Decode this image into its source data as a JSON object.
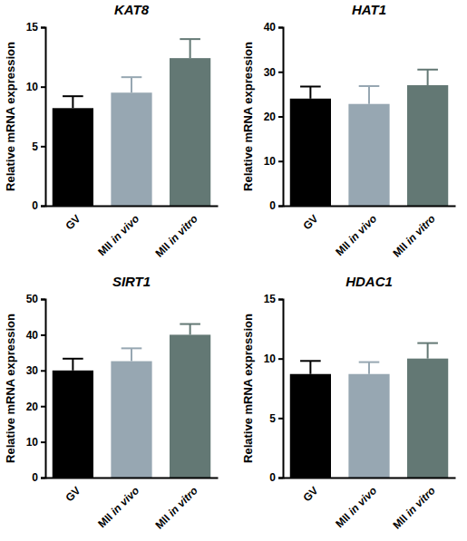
{
  "chart_data": [
    {
      "type": "bar",
      "title": "KAT8",
      "y_label": "Relative mRNA expression",
      "categories": [
        "GV",
        "MII in vivo",
        "MII in vitro"
      ],
      "values": [
        8.2,
        9.5,
        12.4
      ],
      "errors": [
        1.0,
        1.3,
        1.6
      ],
      "colors": [
        "#000000",
        "#97a7b2",
        "#637874"
      ],
      "ylim": [
        0,
        15
      ],
      "yticks": [
        0,
        5,
        10,
        15
      ]
    },
    {
      "type": "bar",
      "title": "HAT1",
      "y_label": "Relative mRNA expression",
      "categories": [
        "GV",
        "MII in vivo",
        "MII in vitro"
      ],
      "values": [
        24,
        22.8,
        27
      ],
      "errors": [
        2.7,
        4.0,
        3.5
      ],
      "colors": [
        "#000000",
        "#97a7b2",
        "#637874"
      ],
      "ylim": [
        0,
        40
      ],
      "yticks": [
        0,
        10,
        20,
        30,
        40
      ]
    },
    {
      "type": "bar",
      "title": "SIRT1",
      "y_label": "Relative mRNA expression",
      "categories": [
        "GV",
        "MII in vivo",
        "MII in vitro"
      ],
      "values": [
        30,
        32.6,
        40
      ],
      "errors": [
        3.3,
        3.6,
        3.0
      ],
      "colors": [
        "#000000",
        "#97a7b2",
        "#637874"
      ],
      "ylim": [
        0,
        50
      ],
      "yticks": [
        0,
        10,
        20,
        30,
        40,
        50
      ]
    },
    {
      "type": "bar",
      "title": "HDAC1",
      "y_label": "Relative mRNA expression",
      "categories": [
        "GV",
        "MII in vivo",
        "MII in vitro"
      ],
      "values": [
        8.7,
        8.7,
        10
      ],
      "errors": [
        1.1,
        1.0,
        1.3
      ],
      "colors": [
        "#000000",
        "#97a7b2",
        "#637874"
      ],
      "ylim": [
        0,
        15
      ],
      "yticks": [
        0,
        5,
        10,
        15
      ]
    }
  ]
}
